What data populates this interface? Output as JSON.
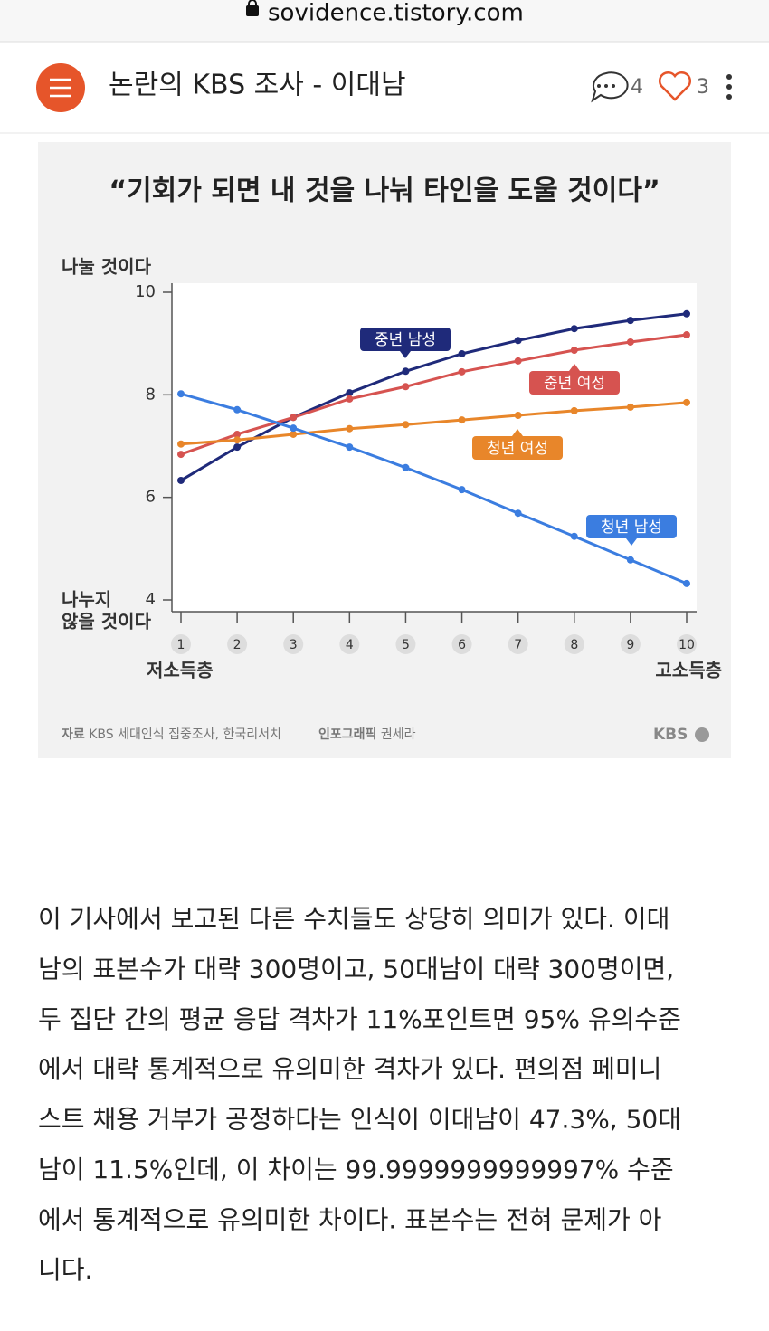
{
  "url": "sovidence.tistory.com",
  "header": {
    "title": "논란의 KBS 조사 - 이대남",
    "comments": 4,
    "likes": 3
  },
  "chart_data": {
    "type": "line",
    "title": "“기회가 되면 내 것을 나눠 타인을 도울 것이다”",
    "ylabel_top": "나눌 것이다",
    "ylabel_bottom": [
      "나누지",
      "않을 것이다"
    ],
    "xlabel_left": "저소득층",
    "xlabel_right": "고소득층",
    "x": [
      1,
      2,
      3,
      4,
      5,
      6,
      7,
      8,
      9,
      10
    ],
    "xlim": [
      1,
      10
    ],
    "xticks": [
      1,
      2,
      3,
      4,
      5,
      6,
      7,
      8,
      9,
      10
    ],
    "ylim": [
      4,
      10
    ],
    "yticks": [
      4,
      6,
      8,
      10
    ],
    "series": [
      {
        "name": "중년 남성",
        "color": "#1f2a7a",
        "values": [
          6.33,
          6.98,
          7.56,
          8.04,
          8.46,
          8.8,
          9.06,
          9.29,
          9.45,
          9.58
        ]
      },
      {
        "name": "중년 여성",
        "color": "#d65350",
        "values": [
          6.84,
          7.23,
          7.56,
          7.92,
          8.16,
          8.45,
          8.66,
          8.87,
          9.03,
          9.17
        ]
      },
      {
        "name": "청년 여성",
        "color": "#e8862a",
        "values": [
          7.04,
          7.12,
          7.23,
          7.34,
          7.42,
          7.51,
          7.6,
          7.69,
          7.76,
          7.85
        ]
      },
      {
        "name": "청년 남성",
        "color": "#3b7de0",
        "values": [
          8.02,
          7.71,
          7.35,
          6.98,
          6.58,
          6.15,
          5.69,
          5.24,
          4.78,
          4.32
        ]
      }
    ],
    "source_label": "자료",
    "source": "KBS 세대인식 집중조사, 한국리서치",
    "credit_label": "인포그래픽",
    "credit": "권세라",
    "logo": "KBS"
  },
  "paragraph_lines": [
    "이 기사에서 보고된 다른 수치들도 상당히 의미가 있다. 이대",
    "남의 표본수가 대략 300명이고, 50대남이 대략 300명이면,",
    "두 집단 간의 평균 응답 격차가 11%포인트면 95% 유의수준",
    "에서 대략 통계적으로 유의미한 격차가 있다. 편의점 페미니",
    "스트 채용 거부가 공정하다는 인식이 이대남이 47.3%, 50대",
    "남이 11.5%인데, 이 차이는 99.9999999999997% 수준",
    "에서 통계적으로 유의미한 차이다. 표본수는 전혀 문제가 아",
    "니다."
  ]
}
